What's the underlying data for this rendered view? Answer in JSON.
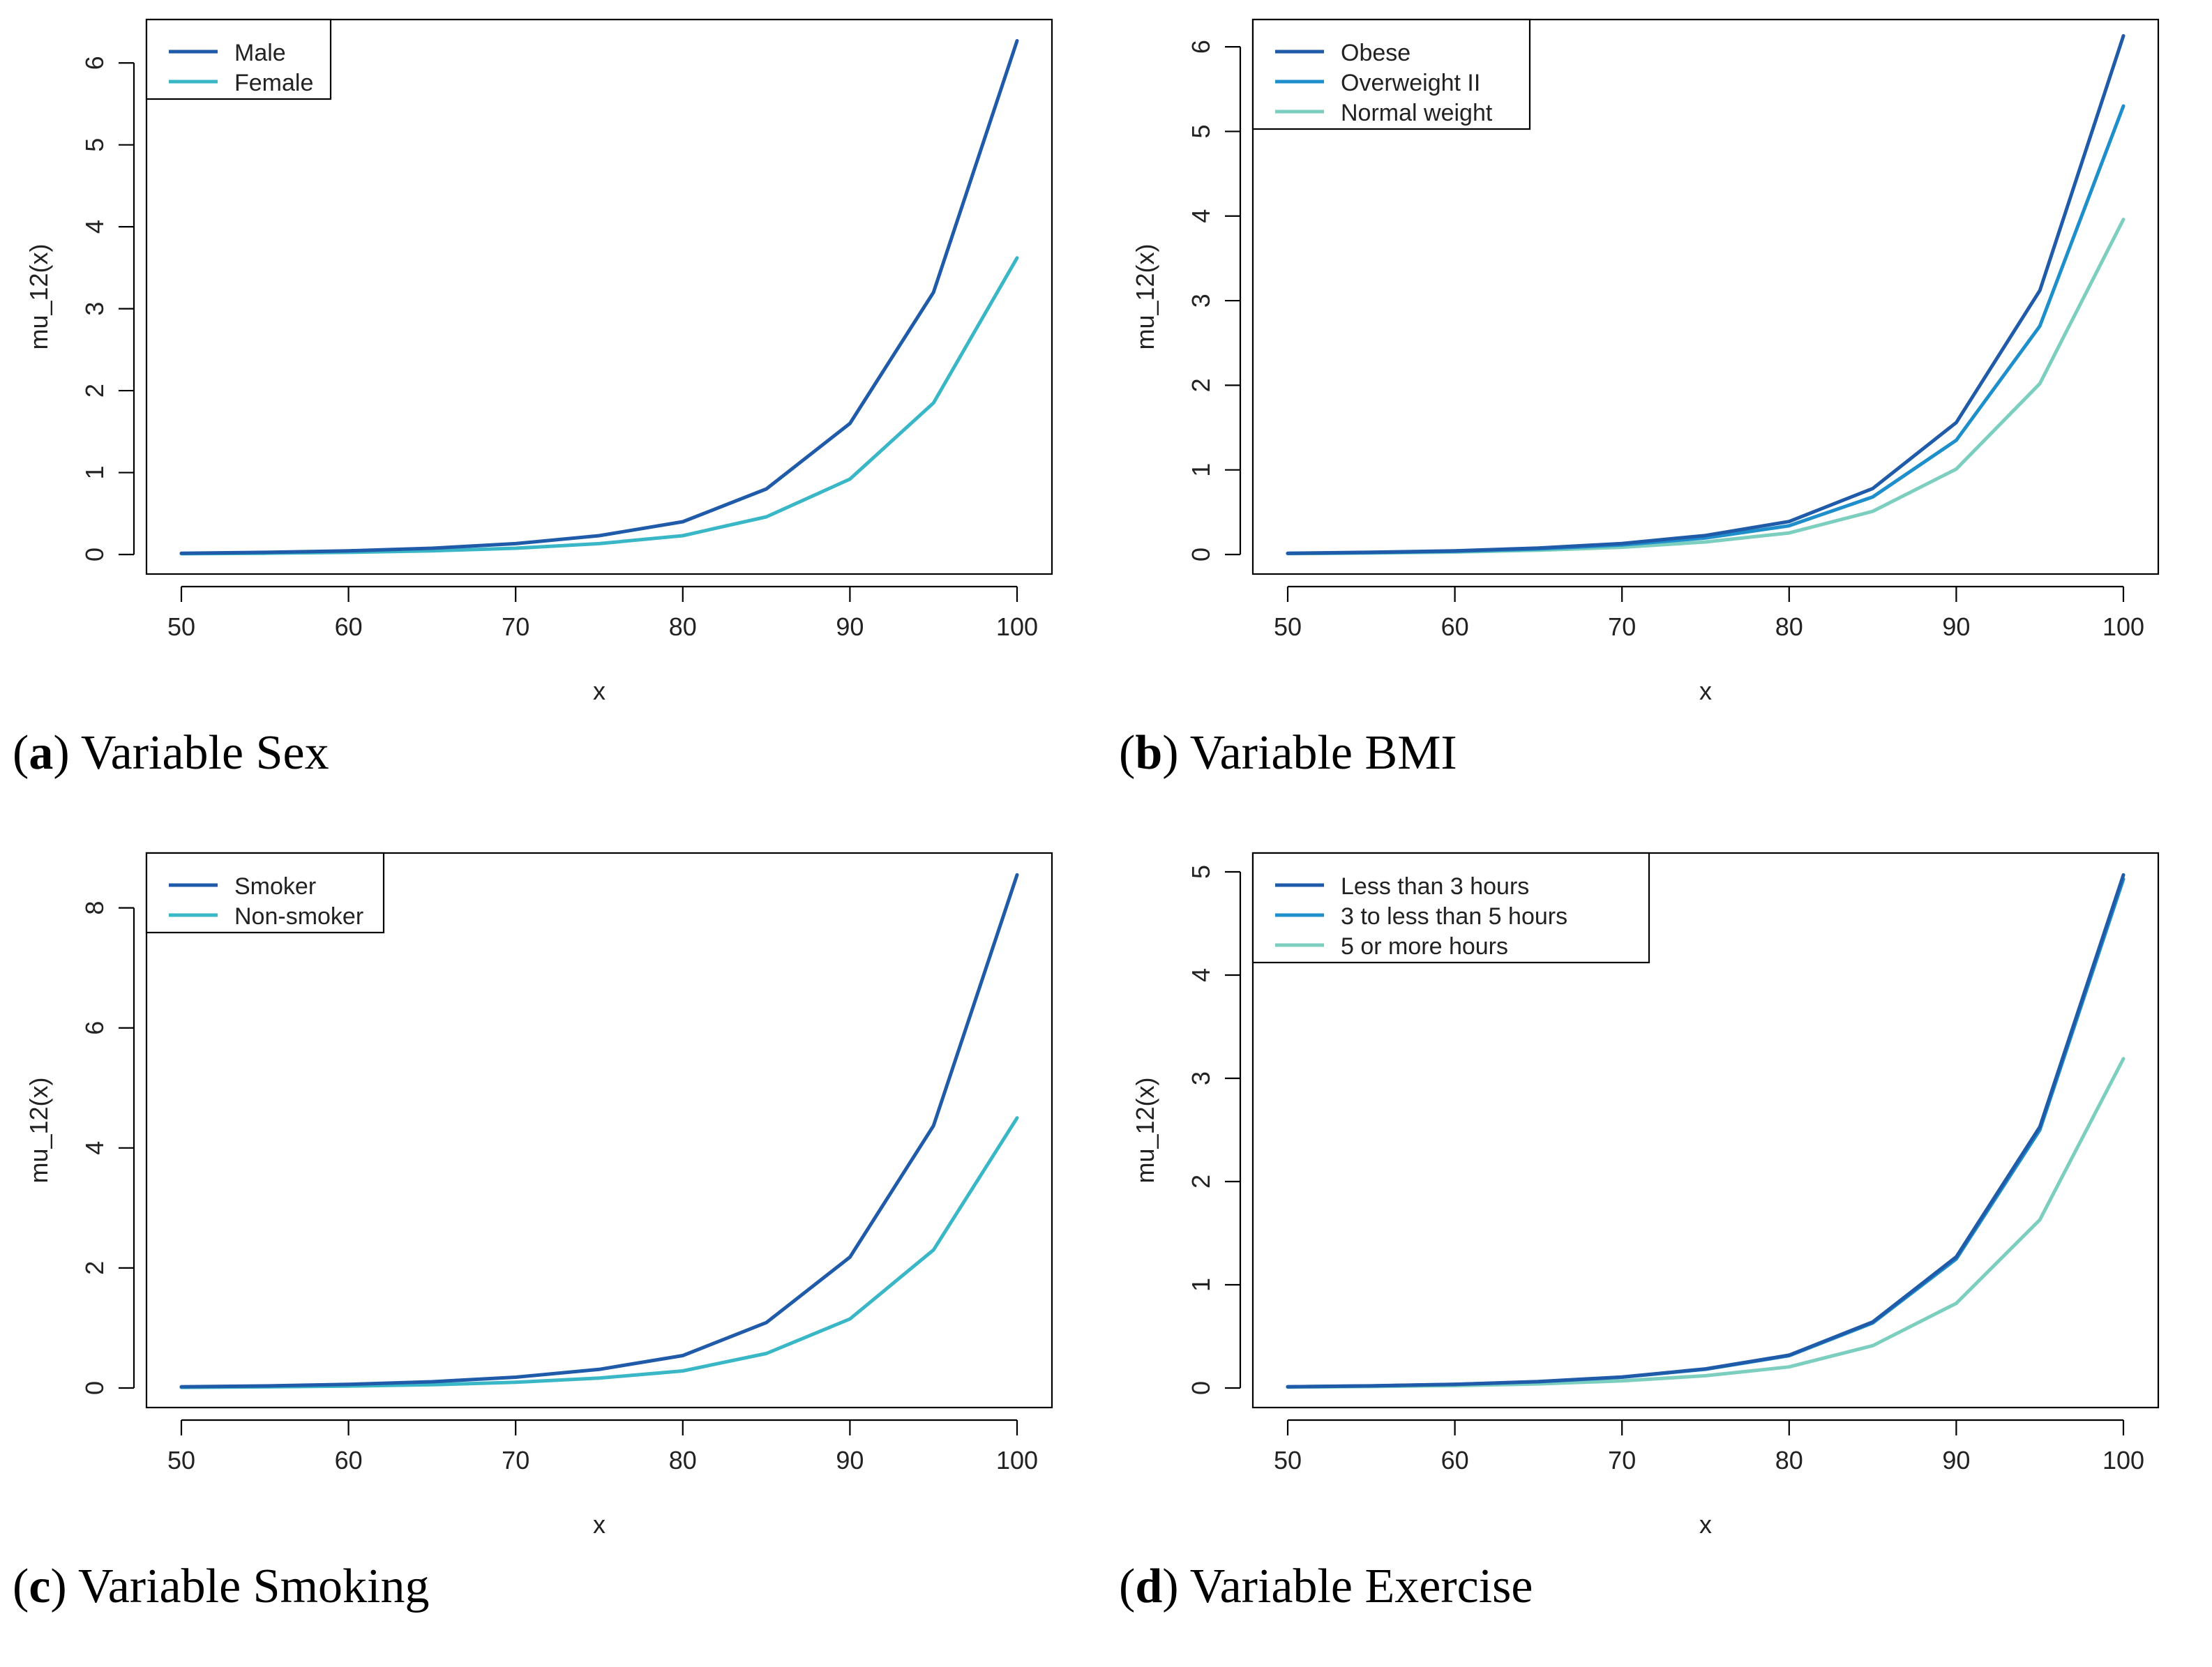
{
  "colors": {
    "dark": "#1f5ba8",
    "mid": "#1f8fcb",
    "light": "#3ab7c7",
    "pale": "#7ccfbf"
  },
  "chart_data": [
    {
      "type": "line",
      "caption_letter": "a",
      "caption_text": "Variable Sex",
      "xlabel": "x",
      "ylabel": "mu_12(x)",
      "xlim": [
        50,
        100
      ],
      "ylim": [
        0,
        6.3
      ],
      "xticks": [
        50,
        60,
        70,
        80,
        90,
        100
      ],
      "yticks": [
        0,
        1,
        2,
        3,
        4,
        5,
        6
      ],
      "legend_position": "top-left",
      "x": [
        50,
        55,
        60,
        65,
        70,
        75,
        80,
        85,
        90,
        95,
        100
      ],
      "series": [
        {
          "name": "Male",
          "color": "#1f5ba8",
          "values": [
            0.015,
            0.026,
            0.045,
            0.077,
            0.133,
            0.23,
            0.4,
            0.8,
            1.6,
            3.2,
            6.27
          ]
        },
        {
          "name": "Female",
          "color": "#3ab7c7",
          "values": [
            0.009,
            0.015,
            0.026,
            0.045,
            0.077,
            0.133,
            0.23,
            0.46,
            0.92,
            1.85,
            3.62
          ]
        }
      ]
    },
    {
      "type": "line",
      "caption_letter": "b",
      "caption_text": "Variable BMI",
      "xlabel": "x",
      "ylabel": "mu_12(x)",
      "xlim": [
        50,
        100
      ],
      "ylim": [
        0,
        6.1
      ],
      "xticks": [
        50,
        60,
        70,
        80,
        90,
        100
      ],
      "yticks": [
        0,
        1,
        2,
        3,
        4,
        5,
        6
      ],
      "legend_position": "top-left",
      "x": [
        50,
        55,
        60,
        65,
        70,
        75,
        80,
        85,
        90,
        95,
        100
      ],
      "series": [
        {
          "name": "Obese",
          "color": "#1f5ba8",
          "values": [
            0.015,
            0.026,
            0.044,
            0.076,
            0.13,
            0.225,
            0.39,
            0.78,
            1.56,
            3.12,
            6.13
          ]
        },
        {
          "name": "Overweight II",
          "color": "#1f8fcb",
          "values": [
            0.013,
            0.022,
            0.038,
            0.066,
            0.113,
            0.195,
            0.34,
            0.68,
            1.35,
            2.7,
            5.3
          ]
        },
        {
          "name": "Normal weight",
          "color": "#7ccfbf",
          "values": [
            0.01,
            0.017,
            0.029,
            0.05,
            0.086,
            0.148,
            0.255,
            0.51,
            1.01,
            2.02,
            3.96
          ]
        }
      ]
    },
    {
      "type": "line",
      "caption_letter": "c",
      "caption_text": "Variable Smoking",
      "xlabel": "x",
      "ylabel": "mu_12(x)",
      "xlim": [
        50,
        100
      ],
      "ylim": [
        0,
        8.6
      ],
      "xticks": [
        50,
        60,
        70,
        80,
        90,
        100
      ],
      "yticks": [
        0,
        2,
        4,
        6,
        8
      ],
      "legend_position": "top-left",
      "x": [
        50,
        55,
        60,
        65,
        70,
        75,
        80,
        85,
        90,
        95,
        100
      ],
      "series": [
        {
          "name": "Smoker",
          "color": "#1f5ba8",
          "values": [
            0.02,
            0.035,
            0.06,
            0.105,
            0.18,
            0.31,
            0.54,
            1.09,
            2.18,
            4.37,
            8.55
          ]
        },
        {
          "name": "Non-smoker",
          "color": "#3ab7c7",
          "values": [
            0.011,
            0.019,
            0.032,
            0.055,
            0.095,
            0.165,
            0.285,
            0.575,
            1.15,
            2.3,
            4.5
          ]
        }
      ]
    },
    {
      "type": "line",
      "caption_letter": "d",
      "caption_text": "Variable Exercise",
      "xlabel": "x",
      "ylabel": "mu_12(x)",
      "xlim": [
        50,
        100
      ],
      "ylim": [
        0,
        5
      ],
      "xticks": [
        50,
        60,
        70,
        80,
        90,
        100
      ],
      "yticks": [
        0,
        1,
        2,
        3,
        4,
        5
      ],
      "legend_position": "top-left",
      "x": [
        50,
        55,
        60,
        65,
        70,
        75,
        80,
        85,
        90,
        95,
        100
      ],
      "series": [
        {
          "name": "Less than 3 hours",
          "color": "#1f5ba8",
          "values": [
            0.012,
            0.021,
            0.036,
            0.062,
            0.107,
            0.185,
            0.318,
            0.64,
            1.27,
            2.53,
            4.97
          ]
        },
        {
          "name": "3 to less than 5 hours",
          "color": "#1f8fcb",
          "values": [
            0.012,
            0.02,
            0.035,
            0.061,
            0.105,
            0.182,
            0.313,
            0.63,
            1.25,
            2.5,
            4.93
          ]
        },
        {
          "name": "5 or more hours",
          "color": "#7ccfbf",
          "values": [
            0.008,
            0.014,
            0.023,
            0.04,
            0.069,
            0.119,
            0.205,
            0.41,
            0.82,
            1.63,
            3.19
          ]
        }
      ]
    }
  ]
}
